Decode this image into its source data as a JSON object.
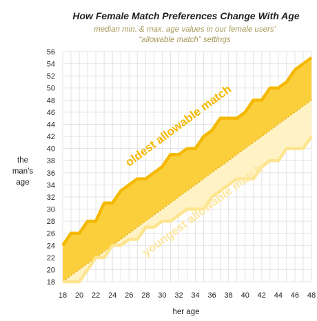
{
  "chart_data": {
    "type": "area",
    "title": "How Female Match Preferences Change With Age",
    "subtitle_lines": [
      "median min. & max. age values in our female users'",
      "“allowable match” settings"
    ],
    "xlabel": "her age",
    "ylabel_lines": [
      "the",
      "man's",
      "age"
    ],
    "xlim": [
      18,
      48
    ],
    "ylim": [
      18,
      56
    ],
    "x_ticks": [
      18,
      20,
      22,
      24,
      26,
      28,
      30,
      32,
      34,
      36,
      38,
      40,
      42,
      44,
      46,
      48
    ],
    "y_ticks": [
      18,
      20,
      22,
      24,
      26,
      28,
      30,
      32,
      34,
      36,
      38,
      40,
      42,
      44,
      46,
      48,
      50,
      52,
      54,
      56
    ],
    "grid": true,
    "x": [
      18,
      19,
      20,
      21,
      22,
      23,
      24,
      25,
      26,
      27,
      28,
      29,
      30,
      31,
      32,
      33,
      34,
      35,
      36,
      37,
      38,
      39,
      40,
      41,
      42,
      43,
      44,
      45,
      46,
      47,
      48
    ],
    "series": [
      {
        "name": "oldest allowable match",
        "values": [
          24,
          26,
          26,
          28,
          28,
          31,
          31,
          33,
          34,
          35,
          35,
          36,
          37,
          39,
          39,
          40,
          40,
          42,
          43,
          45,
          45,
          45,
          46,
          48,
          48,
          50,
          50,
          51,
          53,
          54,
          55
        ],
        "color": "#f5b800"
      },
      {
        "name": "youngest allowable match",
        "values": [
          18,
          18,
          18,
          20,
          22,
          22,
          24,
          24,
          25,
          25,
          27,
          27,
          28,
          28,
          29,
          30,
          30,
          30,
          32,
          33,
          34,
          35,
          35,
          35,
          37,
          38,
          38,
          40,
          40,
          40,
          42
        ],
        "color": "#fde58f"
      }
    ],
    "reference_line": {
      "from": [
        18,
        18
      ],
      "to": [
        48,
        48
      ],
      "style": "dotted"
    },
    "colors": {
      "upper_band": "#fbcf3c",
      "lower_band": "#fff2c4",
      "grid": "#e3e3e3"
    }
  }
}
